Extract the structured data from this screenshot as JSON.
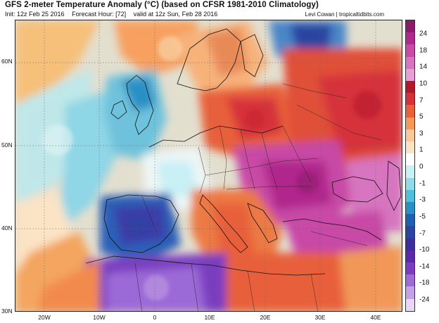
{
  "header": {
    "title": "GFS 2-meter Temperature Anomaly (°C) (based on CFSR 1981-2010 Climatology)",
    "init": "Init: 12z Feb 25 2016",
    "forecast_hour": "Forecast Hour: [72]",
    "valid": "valid at 12z Sun, Feb 28 2016",
    "credit": "Levi Cowan | tropicaltidbits.com"
  },
  "axes": {
    "lat_labels": [
      "60N",
      "50N",
      "40N",
      "30N"
    ],
    "lon_labels": [
      "20W",
      "10W",
      "0",
      "10E",
      "20E",
      "30E",
      "40E"
    ]
  },
  "colorbar": {
    "labels": [
      "24",
      "18",
      "14",
      "10",
      "7",
      "5",
      "3",
      "1",
      "0",
      "-1",
      "-3",
      "-5",
      "-7",
      "-10",
      "-14",
      "-18",
      "-24"
    ],
    "colors": [
      "#8b1c6b",
      "#b0288c",
      "#c84aa6",
      "#d774c0",
      "#e6a0d4",
      "#b2182b",
      "#d6303a",
      "#e8603a",
      "#f39a5a",
      "#f8c89a",
      "#fbe3c5",
      "#ffffff",
      "#c8f0f5",
      "#8fdbe8",
      "#4fc0d8",
      "#2a8fc4",
      "#2060b0",
      "#2a44a0",
      "#3a2f9c",
      "#5a2aa8",
      "#7a3cc0",
      "#9c6bd6",
      "#c4a2e6",
      "#e8d6f4"
    ]
  }
}
